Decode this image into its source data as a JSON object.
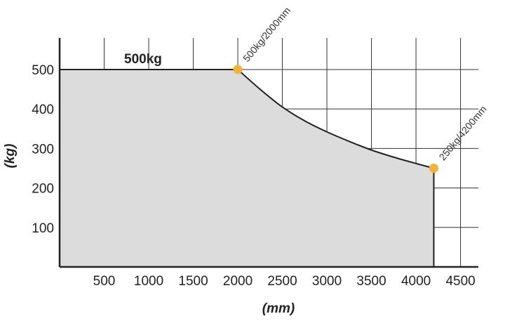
{
  "chart_data": {
    "type": "area",
    "title": "",
    "xlabel": "(mm)",
    "ylabel": "(kg)",
    "xlim": [
      0,
      4700
    ],
    "ylim": [
      0,
      580
    ],
    "x_ticks": [
      500,
      1000,
      1500,
      2000,
      2500,
      3000,
      3500,
      4000,
      4500
    ],
    "y_ticks": [
      100,
      200,
      300,
      400,
      500
    ],
    "grid": true,
    "inner_label": "500kg",
    "series": [
      {
        "points": [
          [
            0,
            500
          ],
          [
            2000,
            500
          ],
          [
            2250,
            450
          ],
          [
            2500,
            405
          ],
          [
            2750,
            370
          ],
          [
            3000,
            342
          ],
          [
            3250,
            318
          ],
          [
            3500,
            296
          ],
          [
            3750,
            278
          ],
          [
            4000,
            262
          ],
          [
            4200,
            250
          ]
        ],
        "area_color": "#dcdcdd",
        "line_color": "#222222"
      }
    ],
    "markers": [
      {
        "x": 2000,
        "y": 500,
        "label": "500kg/2000mm",
        "color": "#f5b335"
      },
      {
        "x": 4200,
        "y": 250,
        "label": "250kg/4200mm",
        "color": "#f5b335"
      }
    ]
  }
}
